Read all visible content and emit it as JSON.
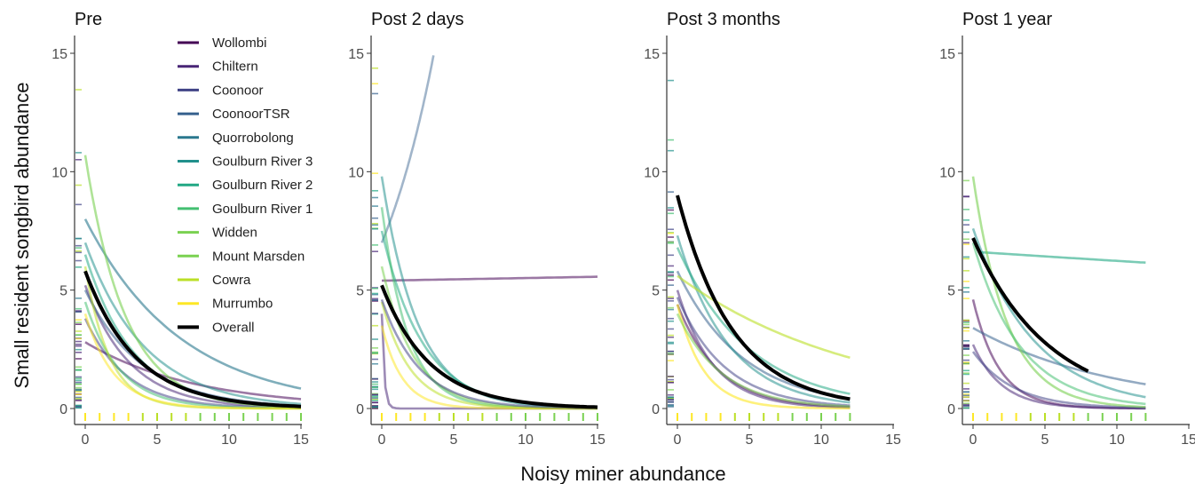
{
  "chart_data": {
    "type": "line",
    "xlabel": "Noisy miner abundance",
    "ylabel": "Small resident songbird abundance",
    "xlim": [
      0,
      15
    ],
    "ylim": [
      0,
      15
    ],
    "xticks": [
      "0",
      "5",
      "10",
      "15"
    ],
    "yticks": [
      "0",
      "5",
      "10",
      "15"
    ],
    "legend_position": "top-right of first panel",
    "legend": [
      {
        "name": "Wollombi",
        "color": "#440154"
      },
      {
        "name": "Chiltern",
        "color": "#482576"
      },
      {
        "name": "Coonoor",
        "color": "#414487"
      },
      {
        "name": "CoonoorTSR",
        "color": "#35608D"
      },
      {
        "name": "Quorrobolong",
        "color": "#2A788E"
      },
      {
        "name": "Goulburn River 3",
        "color": "#21908C"
      },
      {
        "name": "Goulburn River 2",
        "color": "#22A884"
      },
      {
        "name": "Goulburn River 1",
        "color": "#43BF71"
      },
      {
        "name": "Widden",
        "color": "#7AD151"
      },
      {
        "name": "Mount Marsden",
        "color": "#7AD151"
      },
      {
        "name": "Cowra",
        "color": "#BBDF27"
      },
      {
        "name": "Murrumbo",
        "color": "#FDE725"
      },
      {
        "name": "Overall",
        "color": "#000000"
      }
    ],
    "panels": [
      {
        "title": "Pre",
        "overall": {
          "x0": 0,
          "x1": 15,
          "y0": 5.8,
          "rate": 0.28
        },
        "curves": [
          {
            "color": "#44015488",
            "x0": 0,
            "x1": 15,
            "y0": 2.8,
            "rate": 0.13
          },
          {
            "color": "#48257688",
            "x0": 0,
            "x1": 15,
            "y0": 5.2,
            "rate": 0.32
          },
          {
            "color": "#41448788",
            "x0": 0,
            "x1": 15,
            "y0": 3.8,
            "rate": 0.35
          },
          {
            "color": "#35608D88",
            "x0": 0,
            "x1": 15,
            "y0": 5.0,
            "rate": 0.25
          },
          {
            "color": "#2A788E99",
            "x0": 0,
            "x1": 15,
            "y0": 8.0,
            "rate": 0.15
          },
          {
            "color": "#21908C88",
            "x0": 0,
            "x1": 15,
            "y0": 7.0,
            "rate": 0.24
          },
          {
            "color": "#22A88488",
            "x0": 0,
            "x1": 15,
            "y0": 6.5,
            "rate": 0.3
          },
          {
            "color": "#43BF7188",
            "x0": 0,
            "x1": 15,
            "y0": 4.5,
            "rate": 0.42
          },
          {
            "color": "#7AD15199",
            "x0": 0,
            "x1": 15,
            "y0": 10.7,
            "rate": 0.36
          },
          {
            "color": "#BBDF2788",
            "x0": 0,
            "x1": 15,
            "y0": 6.0,
            "rate": 0.6
          },
          {
            "color": "#FDE72588",
            "x0": 0,
            "x1": 15,
            "y0": 4.0,
            "rate": 0.5
          }
        ]
      },
      {
        "title": "Post 2 days",
        "overall": {
          "x0": 0,
          "x1": 15,
          "y0": 5.2,
          "rate": 0.3
        },
        "curves": [
          {
            "color": "#44015488",
            "x0": 0,
            "x1": 15,
            "y0": 5.4,
            "rate": -0.002
          },
          {
            "color": "#48257688",
            "x0": 0,
            "x1": 15,
            "y0": 4.0,
            "rate": 6.0
          },
          {
            "color": "#35608D77",
            "x0": 0,
            "x1": 3.6,
            "y0": 7.0,
            "rate": -0.21
          },
          {
            "color": "#21908C88",
            "x0": 0,
            "x1": 15,
            "y0": 9.8,
            "rate": 0.4
          },
          {
            "color": "#22A88488",
            "x0": 0,
            "x1": 15,
            "y0": 7.5,
            "rate": 0.35
          },
          {
            "color": "#43BF7188",
            "x0": 0,
            "x1": 15,
            "y0": 8.5,
            "rate": 0.55
          },
          {
            "color": "#7AD15188",
            "x0": 0,
            "x1": 15,
            "y0": 6.0,
            "rate": 0.45
          },
          {
            "color": "#BBDF2788",
            "x0": 0,
            "x1": 15,
            "y0": 4.5,
            "rate": 0.5
          },
          {
            "color": "#FDE72588",
            "x0": 0,
            "x1": 15,
            "y0": 3.5,
            "rate": 0.7
          },
          {
            "color": "#41448788",
            "x0": 0,
            "x1": 15,
            "y0": 4.6,
            "rate": 0.38
          }
        ]
      },
      {
        "title": "Post 3 months",
        "overall": {
          "x0": 0,
          "x1": 12,
          "y0": 9.0,
          "rate": 0.26
        },
        "curves": [
          {
            "color": "#44015488",
            "x0": 0,
            "x1": 12,
            "y0": 4.4,
            "rate": 0.35
          },
          {
            "color": "#48257688",
            "x0": 0,
            "x1": 12,
            "y0": 5.0,
            "rate": 0.4
          },
          {
            "color": "#41448788",
            "x0": 0,
            "x1": 12,
            "y0": 4.7,
            "rate": 0.3
          },
          {
            "color": "#35608D88",
            "x0": 0,
            "x1": 12,
            "y0": 5.8,
            "rate": 0.22
          },
          {
            "color": "#21908C88",
            "x0": 0,
            "x1": 12,
            "y0": 7.3,
            "rate": 0.28
          },
          {
            "color": "#22A88488",
            "x0": 0,
            "x1": 12,
            "y0": 6.8,
            "rate": 0.2
          },
          {
            "color": "#BBDF2799",
            "x0": 0,
            "x1": 12,
            "y0": 5.6,
            "rate": 0.08
          },
          {
            "color": "#FDE72599",
            "x0": 0,
            "x1": 12,
            "y0": 4.4,
            "rate": 0.55
          },
          {
            "color": "#7AD15188",
            "x0": 0,
            "x1": 12,
            "y0": 4.0,
            "rate": 0.32
          }
        ]
      },
      {
        "title": "Post 1 year",
        "overall": {
          "x0": 0,
          "x1": 8,
          "y0": 7.2,
          "rate": 0.19
        },
        "curves": [
          {
            "color": "#44015488",
            "x0": 0,
            "x1": 12,
            "y0": 4.6,
            "rate": 0.55
          },
          {
            "color": "#48257688",
            "x0": 0,
            "x1": 12,
            "y0": 2.7,
            "rate": 0.5
          },
          {
            "color": "#41448788",
            "x0": 0,
            "x1": 12,
            "y0": 2.4,
            "rate": 0.35
          },
          {
            "color": "#35608D88",
            "x0": 0,
            "x1": 12,
            "y0": 3.4,
            "rate": 0.1
          },
          {
            "color": "#21908C88",
            "x0": 0,
            "x1": 12,
            "y0": 7.6,
            "rate": 0.23
          },
          {
            "color": "#22A88499",
            "x0": 0.5,
            "x1": 12,
            "y0": 6.6,
            "rate": 0.006
          },
          {
            "color": "#7AD15199",
            "x0": 0,
            "x1": 12,
            "y0": 9.8,
            "rate": 0.42
          },
          {
            "color": "#43BF7188",
            "x0": 0,
            "x1": 12,
            "y0": 7.0,
            "rate": 0.3
          }
        ]
      }
    ]
  }
}
